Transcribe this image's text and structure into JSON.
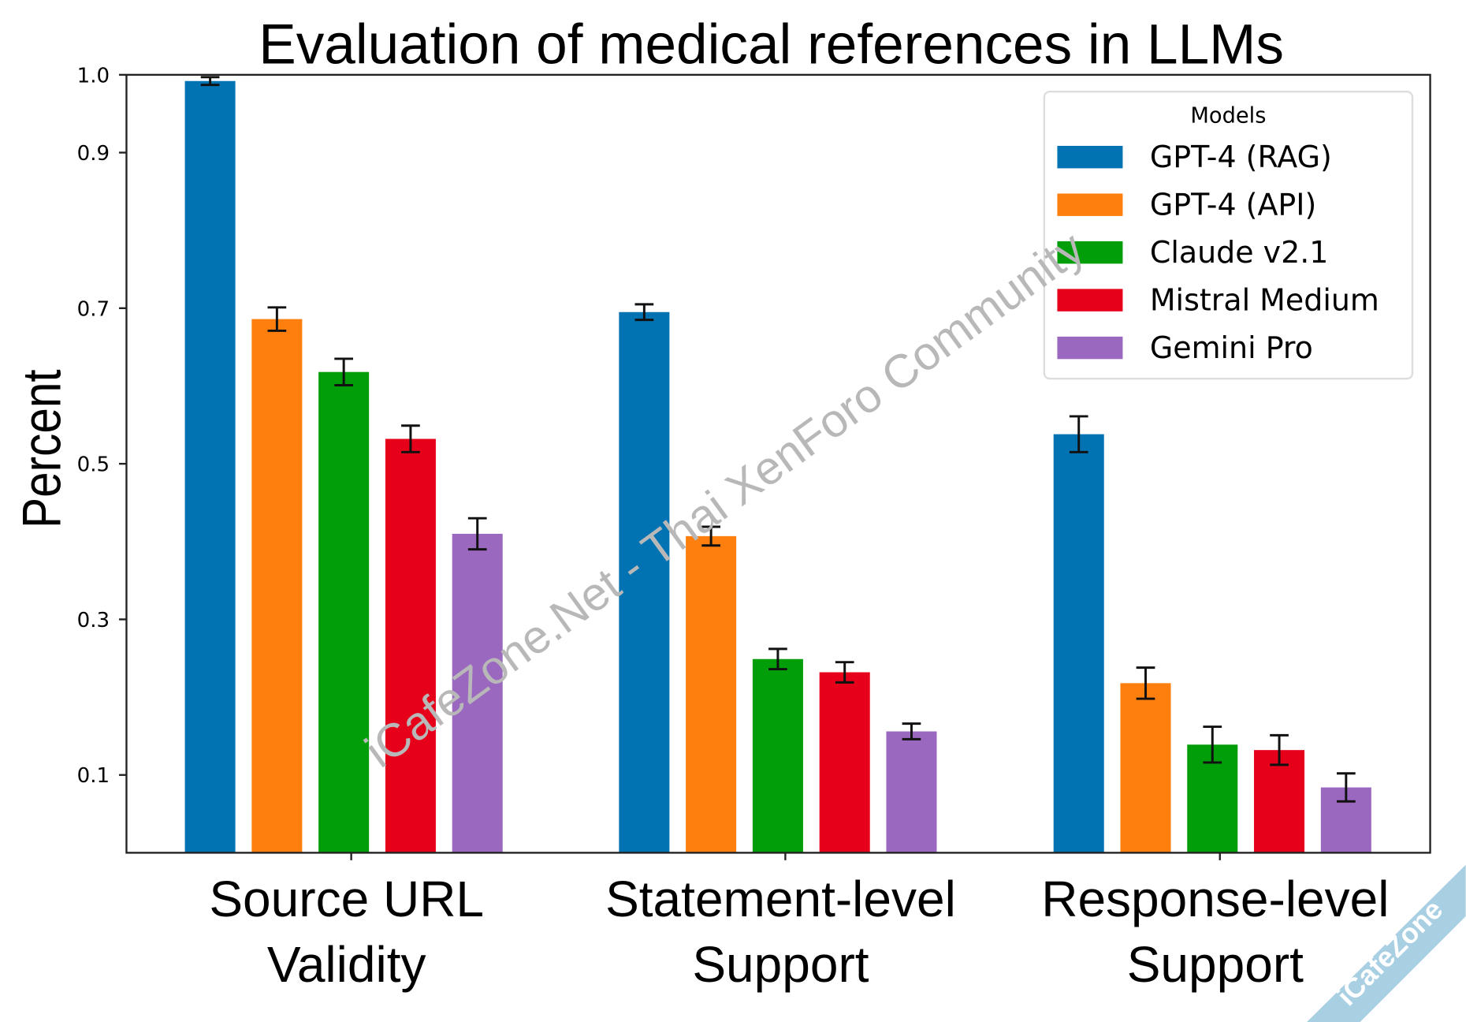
{
  "chart_data": {
    "type": "bar",
    "title": "Evaluation of medical references in LLMs",
    "xlabel": "",
    "ylabel": "Percent",
    "ylim": [
      0,
      1.0
    ],
    "yticks": [
      1.0,
      0.9,
      0.7,
      0.5,
      0.3,
      0.1
    ],
    "ytick_labels": [
      "1.0",
      "0.9",
      "0.7",
      "0.5",
      "0.3",
      "0.1"
    ],
    "categories": [
      [
        "Source URL",
        "Validity"
      ],
      [
        "Statement-level",
        "Support"
      ],
      [
        "Response-level",
        "Support"
      ]
    ],
    "legend": {
      "title": "Models",
      "placement": "top-right"
    },
    "series": [
      {
        "name": "GPT-4 (RAG)",
        "color": "#0173b2",
        "values": [
          0.992,
          0.695,
          0.538
        ],
        "errors": [
          0.005,
          0.01,
          0.023
        ]
      },
      {
        "name": "GPT-4 (API)",
        "color": "#ff7f0e",
        "values": [
          0.686,
          0.407,
          0.218
        ],
        "errors": [
          0.015,
          0.012,
          0.02
        ]
      },
      {
        "name": "Claude v2.1",
        "color": "#029e0a",
        "values": [
          0.618,
          0.249,
          0.139
        ],
        "errors": [
          0.017,
          0.013,
          0.023
        ]
      },
      {
        "name": "Mistral Medium",
        "color": "#e6001a",
        "values": [
          0.532,
          0.232,
          0.132
        ],
        "errors": [
          0.017,
          0.013,
          0.019
        ]
      },
      {
        "name": "Gemini Pro",
        "color": "#9b68c0",
        "values": [
          0.41,
          0.156,
          0.084
        ],
        "errors": [
          0.02,
          0.01,
          0.018
        ]
      }
    ]
  },
  "watermark": "iCafeZone.Net - Thai XenForo Community",
  "corner_badge": "iCafeZone"
}
